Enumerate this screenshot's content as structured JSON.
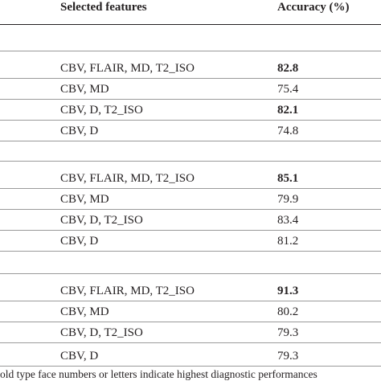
{
  "table": {
    "header": [
      "Selected features",
      "Accuracy (%)"
    ],
    "groups": [
      {
        "rows": [
          {
            "cells": [
              "CBV, FLAIR, MD, T2_ISO",
              "82.8"
            ],
            "bold": true
          },
          {
            "cells": [
              "CBV, MD",
              "75.4"
            ],
            "bold": false
          },
          {
            "cells": [
              "CBV, D, T2_ISO",
              "82.1"
            ],
            "bold": true
          },
          {
            "cells": [
              "CBV, D",
              "74.8"
            ],
            "bold": false
          }
        ]
      },
      {
        "rows": [
          {
            "cells": [
              "CBV, FLAIR, MD, T2_ISO",
              "85.1"
            ],
            "bold": true
          },
          {
            "cells": [
              "CBV, MD",
              "79.9"
            ],
            "bold": false
          },
          {
            "cells": [
              "CBV, D, T2_ISO",
              "83.4"
            ],
            "bold": false
          },
          {
            "cells": [
              "CBV, D",
              "81.2"
            ],
            "bold": false
          }
        ]
      },
      {
        "rows": [
          {
            "cells": [
              "CBV, FLAIR, MD, T2_ISO",
              "91.3"
            ],
            "bold": true
          },
          {
            "cells": [
              "CBV, MD",
              "80.2"
            ],
            "bold": false
          },
          {
            "cells": [
              "CBV, D, T2_ISO",
              "79.3"
            ],
            "bold": false
          },
          {
            "cells": [
              "CBV, D",
              "79.3"
            ],
            "bold": false
          }
        ]
      }
    ],
    "footnote": "old type face numbers or letters indicate highest diagnostic performances"
  }
}
